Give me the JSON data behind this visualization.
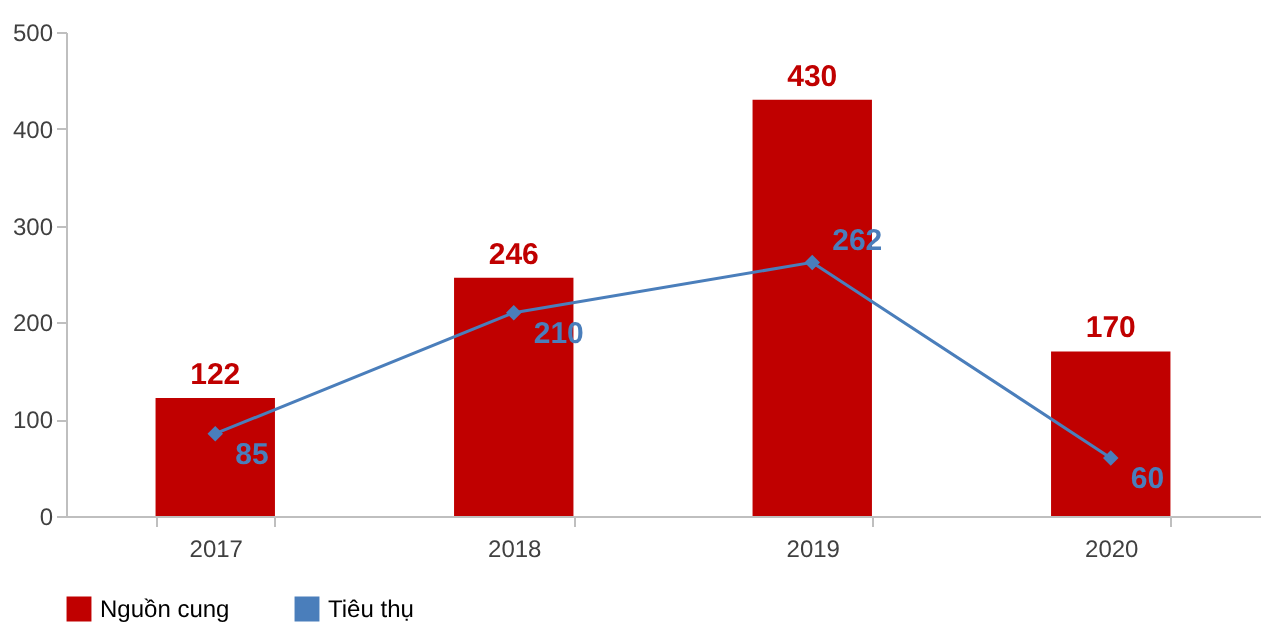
{
  "chart_data": {
    "type": "bar",
    "categories": [
      "2017",
      "2018",
      "2019",
      "2020"
    ],
    "series": [
      {
        "name": "Nguồn cung",
        "color": "#c00000",
        "values": [
          122,
          246,
          430,
          170
        ]
      },
      {
        "name": "Tiêu thụ",
        "type": "line",
        "color": "#4a7ebb",
        "values": [
          85,
          210,
          262,
          60
        ]
      }
    ],
    "ylim": [
      0,
      500
    ],
    "yticks": [
      0,
      100,
      200,
      300,
      400,
      500
    ],
    "grid": false,
    "legend": "bottom",
    "marker": "diamond",
    "line_style": "solid",
    "data_labels": true
  }
}
